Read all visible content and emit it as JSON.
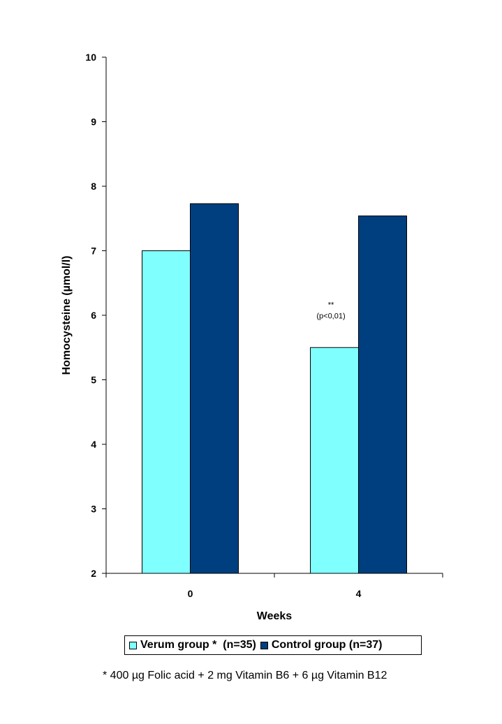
{
  "chart_data": {
    "type": "bar",
    "categories": [
      "0",
      "4"
    ],
    "series": [
      {
        "name": "Verum group *  (n=35)",
        "values": [
          7.0,
          5.5
        ],
        "color": "#80FFFF"
      },
      {
        "name": "Control group (n=37)",
        "values": [
          7.73,
          7.54
        ],
        "color": "#003F7F"
      }
    ],
    "xlabel": "Weeks",
    "ylabel": "Homocysteine (µmol/l)",
    "ylim": [
      2,
      10
    ],
    "yticks": [
      2,
      3,
      4,
      5,
      6,
      7,
      8,
      9,
      10
    ],
    "grid": false,
    "legend_position": "bottom",
    "annotation": {
      "line1": "**",
      "line2": "(p<0,01)",
      "category": "4",
      "series": 0
    },
    "footnote": "* 400 µg Folic acid + 2 mg Vitamin B6 + 6 µg Vitamin B12"
  }
}
